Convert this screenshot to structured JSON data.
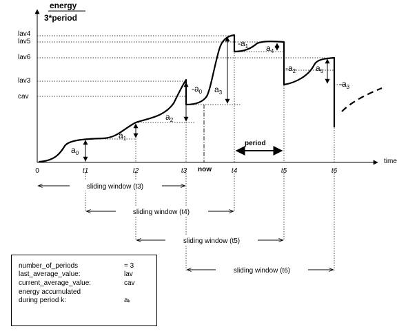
{
  "y_axis": {
    "label_top": "energy",
    "label_bottom": "3*period"
  },
  "x_axis": {
    "label": "time"
  },
  "levels": {
    "lav4": "lav4",
    "lav5": "lav5",
    "lav6": "lav6",
    "lav3": "lav3",
    "cav": "cav"
  },
  "ticks": {
    "t0": "0",
    "t1": "t1",
    "t2": "t2",
    "t3": "t3",
    "now": "now",
    "t4": "t4",
    "t5": "t5",
    "t6": "t6"
  },
  "annotations": {
    "a0": "a",
    "a0_sub": "0",
    "a1": "a",
    "a1_sub": "1",
    "a2": "a",
    "a2_sub": "2",
    "a3": "a",
    "a3_sub": "3",
    "a4": "a",
    "a4_sub": "4",
    "a5": "a",
    "a5_sub": "5",
    "neg_a0": "-a",
    "neg_a0_sub": "0",
    "neg_a1": "-a",
    "neg_a1_sub": "1",
    "neg_a2": "-a",
    "neg_a2_sub": "2",
    "neg_a3": "-a",
    "neg_a3_sub": "3",
    "period": "period"
  },
  "windows": {
    "w3": "sliding window (t3)",
    "w4": "sliding window (t4)",
    "w5": "sliding window (t5)",
    "w6": "sliding window (t6)"
  },
  "legend": {
    "rows": [
      {
        "label": "number_of_periods",
        "value": "= 3"
      },
      {
        "label": "last_average_value:",
        "value": "lav"
      },
      {
        "label": "current_average_value:",
        "value": "cav"
      },
      {
        "label": "energy accumulated",
        "value": ""
      },
      {
        "label": "during period k:",
        "value": "aₖ"
      }
    ]
  }
}
